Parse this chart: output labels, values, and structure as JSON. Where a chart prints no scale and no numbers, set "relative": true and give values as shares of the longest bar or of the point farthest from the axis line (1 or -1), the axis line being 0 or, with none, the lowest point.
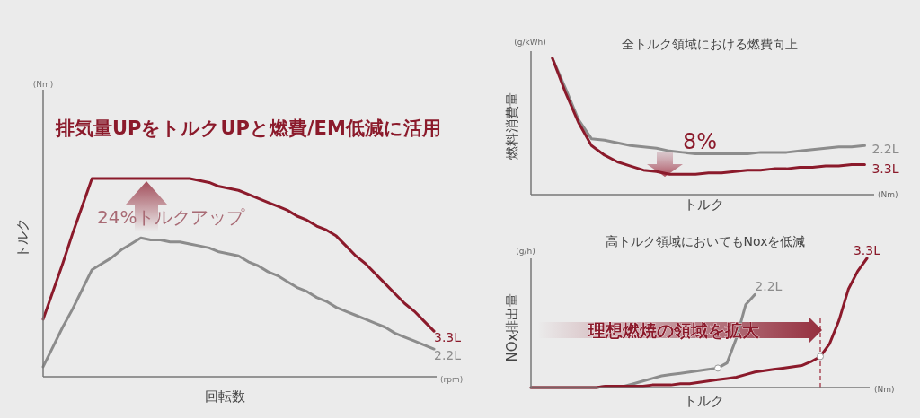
{
  "chart_data": [
    {
      "type": "line",
      "relative": true,
      "title": "排気量UPをトルクUPと燃費/EM低減に活用",
      "xlabel": "回転数",
      "ylabel": "トルク",
      "annotations": [
        "(Nm)",
        "(rpm)",
        "24%トルクアップ"
      ],
      "categories": [
        null,
        null,
        null,
        null,
        null,
        null,
        null,
        null,
        null,
        null,
        null,
        null,
        null,
        null,
        null,
        null,
        null,
        null,
        null,
        null,
        null,
        null,
        null,
        null,
        null,
        null,
        null,
        null,
        null,
        null,
        null,
        null,
        null,
        null,
        null,
        null,
        null,
        null,
        null,
        null,
        null
      ],
      "series": [
        {
          "name": "3.3L",
          "color": "#8b1a2b",
          "values": [
            0.29,
            0.43,
            0.57,
            0.72,
            0.86,
            1,
            1,
            1,
            1,
            1,
            1,
            1,
            1,
            1,
            1,
            1,
            0.99,
            0.98,
            0.96,
            0.95,
            0.94,
            0.92,
            0.9,
            0.88,
            0.86,
            0.84,
            0.81,
            0.79,
            0.76,
            0.74,
            0.71,
            0.66,
            0.61,
            0.57,
            0.52,
            0.47,
            0.42,
            0.37,
            0.33,
            0.28,
            0.23
          ]
        },
        {
          "name": "2.2L",
          "color": "#8c8c8c",
          "values": [
            0.05,
            0.15,
            0.25,
            0.34,
            0.44,
            0.54,
            0.57,
            0.6,
            0.64,
            0.67,
            0.7,
            0.69,
            0.69,
            0.68,
            0.68,
            0.67,
            0.66,
            0.65,
            0.63,
            0.62,
            0.61,
            0.58,
            0.56,
            0.53,
            0.51,
            0.48,
            0.45,
            0.43,
            0.4,
            0.38,
            0.35,
            0.33,
            0.31,
            0.29,
            0.27,
            0.25,
            0.22,
            0.2,
            0.18,
            0.16,
            0.14
          ]
        }
      ]
    },
    {
      "type": "line",
      "relative": true,
      "title": "全トルク領域における燃費向上",
      "xlabel": "トルク",
      "ylabel": "燃料消費量",
      "annotations": [
        "(g/kWh)",
        "(Nm)",
        "8%"
      ],
      "categories": [
        null,
        null,
        null,
        null,
        null,
        null,
        null,
        null,
        null,
        null,
        null,
        null,
        null,
        null,
        null,
        null,
        null,
        null,
        null,
        null,
        null,
        null,
        null,
        null,
        null
      ],
      "series": [
        {
          "name": "2.2L",
          "color": "#8c8c8c",
          "values": [
            1,
            0.78,
            0.55,
            0.41,
            0.4,
            0.38,
            0.36,
            0.35,
            0.34,
            0.32,
            0.31,
            0.3,
            0.3,
            0.3,
            0.3,
            0.3,
            0.31,
            0.31,
            0.31,
            0.32,
            0.33,
            0.34,
            0.35,
            0.35,
            0.36
          ]
        },
        {
          "name": "3.3L",
          "color": "#8b1a2b",
          "values": [
            1,
            0.75,
            0.53,
            0.36,
            0.29,
            0.24,
            0.21,
            0.18,
            0.17,
            0.15,
            0.15,
            0.15,
            0.16,
            0.16,
            0.17,
            0.18,
            0.18,
            0.19,
            0.19,
            0.2,
            0.2,
            0.21,
            0.21,
            0.22,
            0.22
          ]
        }
      ]
    },
    {
      "type": "line",
      "relative": true,
      "title": "高トルク領域においてもNoxを低減",
      "xlabel": "トルク",
      "ylabel": "NOx排出量",
      "annotations": [
        "(g/h)",
        "(Nm)",
        "理想燃焼の領域を拡大"
      ],
      "categories": [
        null,
        null,
        null,
        null,
        null,
        null,
        null,
        null,
        null,
        null,
        null,
        null,
        null,
        null,
        null,
        null,
        null,
        null,
        null,
        null,
        null,
        null,
        null,
        null,
        null,
        null,
        null,
        null,
        null,
        null,
        null,
        null,
        null,
        null,
        null,
        null,
        null
      ],
      "series": [
        {
          "name": "2.2L",
          "color": "#8c8c8c",
          "values": [
            0,
            0,
            0,
            0,
            0,
            0,
            0,
            0,
            0.01,
            0.01,
            0.01,
            0.03,
            0.05,
            0.07,
            0.09,
            0.1,
            0.11,
            0.12,
            0.13,
            0.14,
            0.15,
            0.19,
            0.38,
            0.64,
            0.72,
            null,
            null,
            null,
            null,
            null,
            null,
            null,
            null,
            null,
            null,
            null,
            null
          ]
        },
        {
          "name": "3.3L",
          "color": "#8b1a2b",
          "values": [
            0,
            0,
            0,
            0,
            0,
            0,
            0,
            0,
            0.01,
            0.01,
            0.01,
            0.01,
            0.01,
            0.02,
            0.02,
            0.02,
            0.03,
            0.03,
            0.04,
            0.05,
            0.06,
            0.07,
            0.08,
            0.1,
            0.12,
            0.13,
            0.14,
            0.15,
            0.16,
            0.17,
            0.2,
            0.24,
            0.34,
            0.52,
            0.76,
            0.9,
            1
          ]
        }
      ]
    }
  ]
}
